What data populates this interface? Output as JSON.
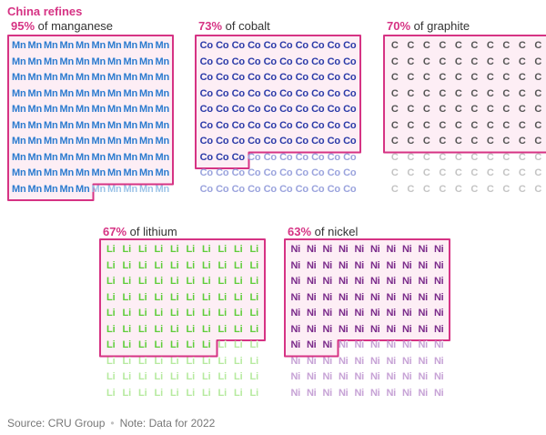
{
  "chart_data": {
    "type": "waffle",
    "title": "China refines",
    "outline_color": "#d63384",
    "panels": [
      {
        "symbol": "Mn",
        "percent": 95,
        "percent_label": "95%",
        "label_rest": " of manganese",
        "total": 100,
        "color": "#2b7bcf",
        "muted_color": "#9cc3e8",
        "fill": "#fdeef5"
      },
      {
        "symbol": "Co",
        "percent": 73,
        "percent_label": "73%",
        "label_rest": " of cobalt",
        "total": 100,
        "color": "#2a3aa8",
        "muted_color": "#9aa3dd",
        "fill": "#fdeef5"
      },
      {
        "symbol": "C",
        "percent": 70,
        "percent_label": "70%",
        "label_rest": " of graphite",
        "total": 100,
        "color": "#555555",
        "muted_color": "#c4c4c4",
        "fill": "#fdeef5"
      },
      {
        "symbol": "Li",
        "percent": 67,
        "percent_label": "67%",
        "label_rest": " of lithium",
        "total": 100,
        "color": "#5fcd3a",
        "muted_color": "#b6ea9f",
        "fill": "#fdeef5"
      },
      {
        "symbol": "Ni",
        "percent": 63,
        "percent_label": "63%",
        "label_rest": " of nickel",
        "total": 100,
        "color": "#7a2a8a",
        "muted_color": "#c7a3d6",
        "fill": "#fdeef5"
      }
    ]
  },
  "footer": {
    "source": "Source: CRU Group",
    "separator": "•",
    "note": "Note: Data for 2022"
  }
}
